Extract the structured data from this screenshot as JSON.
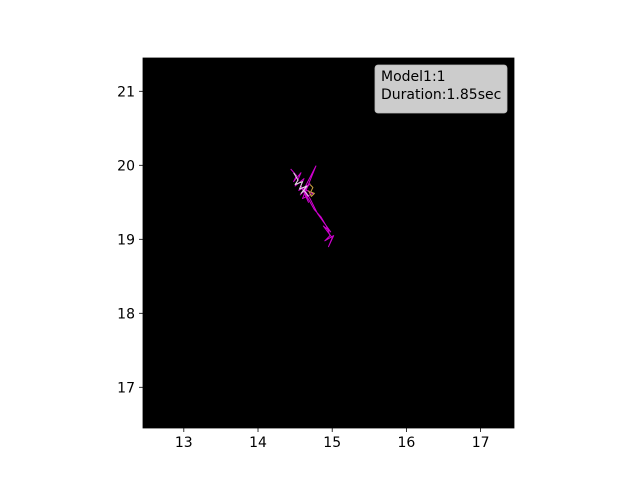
{
  "chart_data": {
    "type": "line",
    "title": "",
    "xlabel": "",
    "ylabel": "",
    "xlim": [
      12.45,
      17.45
    ],
    "ylim": [
      16.45,
      21.45
    ],
    "xticks": [
      13,
      14,
      15,
      16,
      17
    ],
    "yticks": [
      17,
      18,
      19,
      20,
      21
    ],
    "grid": false,
    "legend_position": "top-right",
    "legend_lines": [
      "Model1:1",
      "Duration:1.85sec"
    ],
    "background": "#000000",
    "series": [
      {
        "color": "#d000d0",
        "x": [
          14.44,
          14.52,
          14.48,
          14.58,
          14.5,
          14.62,
          14.55,
          14.7,
          14.57,
          14.66,
          14.6,
          14.74,
          14.62,
          14.78,
          14.63,
          14.68,
          14.58,
          14.76,
          14.85,
          14.92,
          14.97,
          14.9,
          15.02,
          14.95,
          15.0,
          14.88,
          14.98,
          14.8,
          14.7,
          14.64
        ],
        "y": [
          19.95,
          19.86,
          19.78,
          19.9,
          19.72,
          19.82,
          19.66,
          19.75,
          19.6,
          19.7,
          19.55,
          19.62,
          19.68,
          19.99,
          19.62,
          19.5,
          19.72,
          19.4,
          19.3,
          19.18,
          19.05,
          18.98,
          19.05,
          18.9,
          19.02,
          19.18,
          19.1,
          19.35,
          19.55,
          19.65
        ]
      },
      {
        "color": "#e0e0e0",
        "x": [
          14.48,
          14.54,
          14.5,
          14.6,
          14.56,
          14.66,
          14.58,
          14.62,
          14.68
        ],
        "y": [
          19.9,
          19.8,
          19.74,
          19.78,
          19.68,
          19.72,
          19.62,
          19.66,
          19.58
        ]
      },
      {
        "color": "#c8a040",
        "x": [
          14.7,
          14.74,
          14.71,
          14.76,
          14.72,
          14.68
        ],
        "y": [
          19.74,
          19.7,
          19.64,
          19.62,
          19.58,
          19.66
        ]
      }
    ]
  }
}
